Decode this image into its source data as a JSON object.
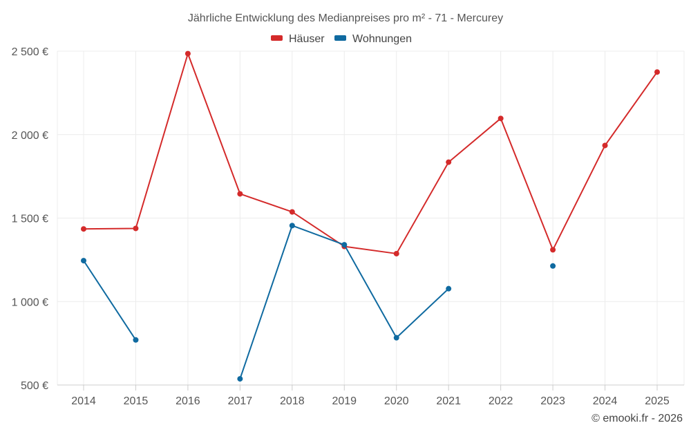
{
  "chart_data": {
    "type": "line",
    "title": "Jährliche Entwicklung des Medianpreises pro m² - 71 - Mercurey",
    "categories": [
      "2014",
      "2015",
      "2016",
      "2017",
      "2018",
      "2019",
      "2020",
      "2021",
      "2022",
      "2023",
      "2024",
      "2025"
    ],
    "series": [
      {
        "name": "Häuser",
        "color": "#d42a2a",
        "values": [
          1435,
          1438,
          2485,
          1645,
          1537,
          1330,
          1287,
          1835,
          2097,
          1310,
          1935,
          2375
        ]
      },
      {
        "name": "Wohnungen",
        "color": "#0f6aa0",
        "values": [
          1245,
          770,
          null,
          537,
          1455,
          1340,
          783,
          1077,
          null,
          1213,
          null,
          null
        ]
      }
    ],
    "y_ticks": [
      500,
      1000,
      1500,
      2000,
      2500
    ],
    "y_tick_labels": [
      "500 €",
      "1 000 €",
      "1 500 €",
      "2 000 €",
      "2 500 €"
    ],
    "ylim": [
      500,
      2500
    ],
    "xlabel": "",
    "ylabel": "",
    "legend_position": "top-center",
    "credit": "© emooki.fr - 2026"
  }
}
